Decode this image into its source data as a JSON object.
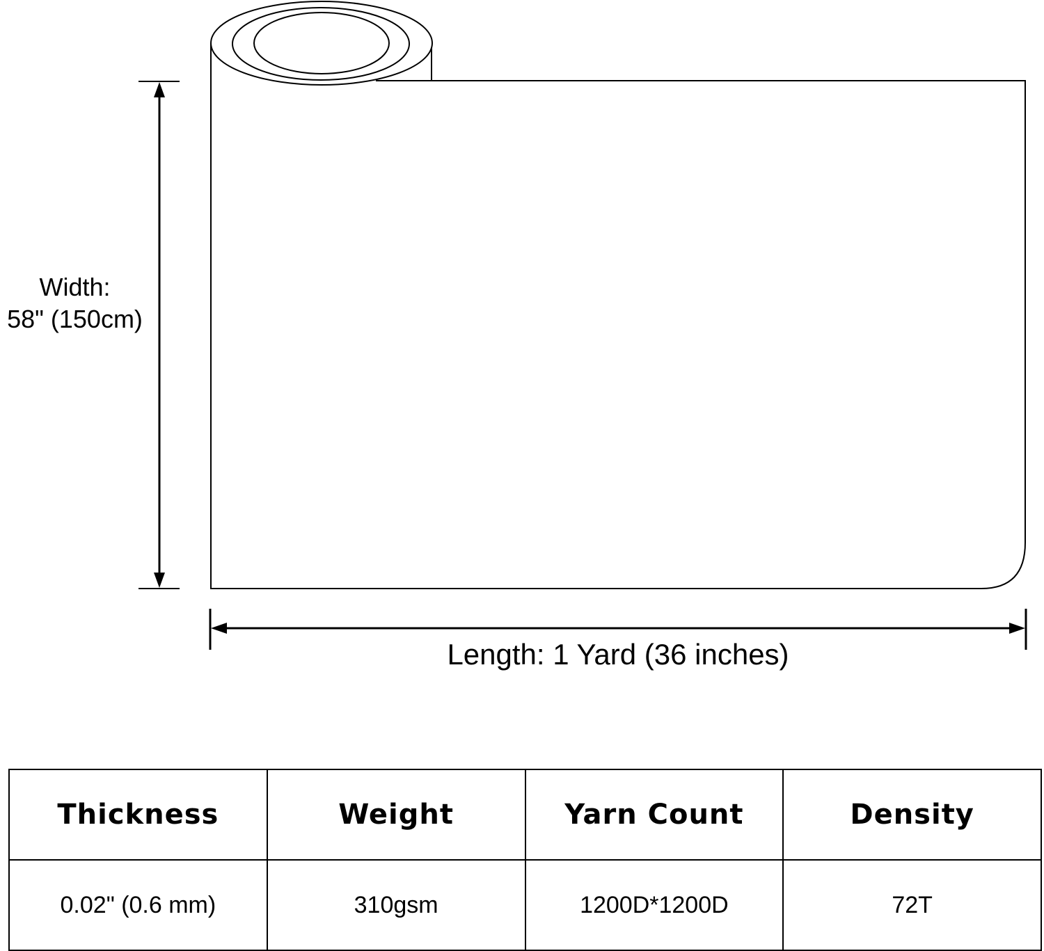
{
  "dimensions": {
    "width_label_line1": "Width:",
    "width_label_line2": "58\" (150cm)",
    "length_label": "Length: 1 Yard (36 inches)"
  },
  "specs_table": {
    "headers": [
      "Thickness",
      "Weight",
      "Yarn Count",
      "Density"
    ],
    "values": [
      "0.02\" (0.6 mm)",
      "310gsm",
      "1200D*1200D",
      "72T"
    ]
  }
}
